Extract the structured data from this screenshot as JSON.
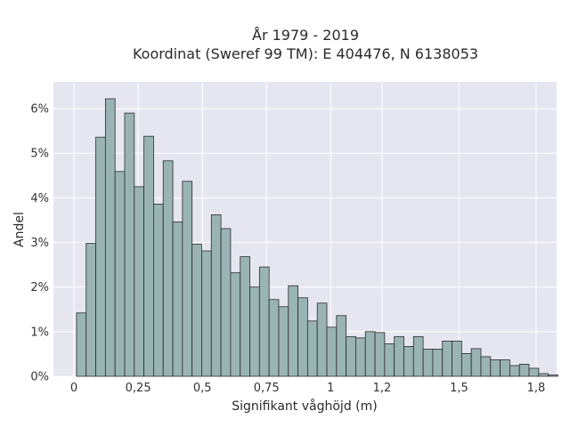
{
  "chart_data": {
    "type": "bar",
    "title_line1": "År 1979 - 2019",
    "title_line2": "Koordinat (Sweref 99 TM): E 404476, N 6138053",
    "xlabel": "Signifikant våghöjd (m)",
    "ylabel": "Andel",
    "xlim": [
      -0.08,
      1.88
    ],
    "ylim": [
      0,
      6.6
    ],
    "xticks": [
      {
        "value": 0,
        "label": "0"
      },
      {
        "value": 0.25,
        "label": "0,25"
      },
      {
        "value": 0.5,
        "label": "0,5"
      },
      {
        "value": 0.75,
        "label": "0,75"
      },
      {
        "value": 1,
        "label": "1"
      },
      {
        "value": 1.2,
        "label": "1,2"
      },
      {
        "value": 1.5,
        "label": "1,5"
      },
      {
        "value": 1.8,
        "label": "1,8"
      }
    ],
    "yticks": [
      {
        "value": 0,
        "label": "0%"
      },
      {
        "value": 1,
        "label": "1%"
      },
      {
        "value": 2,
        "label": "2%"
      },
      {
        "value": 3,
        "label": "3%"
      },
      {
        "value": 4,
        "label": "4%"
      },
      {
        "value": 5,
        "label": "5%"
      },
      {
        "value": 6,
        "label": "6%"
      }
    ],
    "grid": true,
    "bin_width": 0.0375,
    "bin_start": 0.01,
    "values": [
      1.42,
      2.98,
      5.36,
      6.22,
      4.59,
      5.9,
      4.25,
      5.38,
      3.86,
      4.83,
      3.46,
      4.37,
      2.96,
      2.81,
      3.62,
      3.31,
      2.32,
      2.68,
      2.0,
      2.45,
      1.72,
      1.56,
      2.03,
      1.76,
      1.24,
      1.64,
      1.1,
      1.36,
      0.89,
      0.86,
      1.0,
      0.98,
      0.73,
      0.89,
      0.67,
      0.89,
      0.61,
      0.61,
      0.79,
      0.79,
      0.51,
      0.62,
      0.44,
      0.37,
      0.37,
      0.24,
      0.27,
      0.18,
      0.06,
      0.03
    ],
    "colors": {
      "plot_bg": "#e6e6f0",
      "grid": "#ffffff",
      "bar_fill": "#9ab4b4",
      "bar_stroke": "#2b2b2b"
    }
  }
}
